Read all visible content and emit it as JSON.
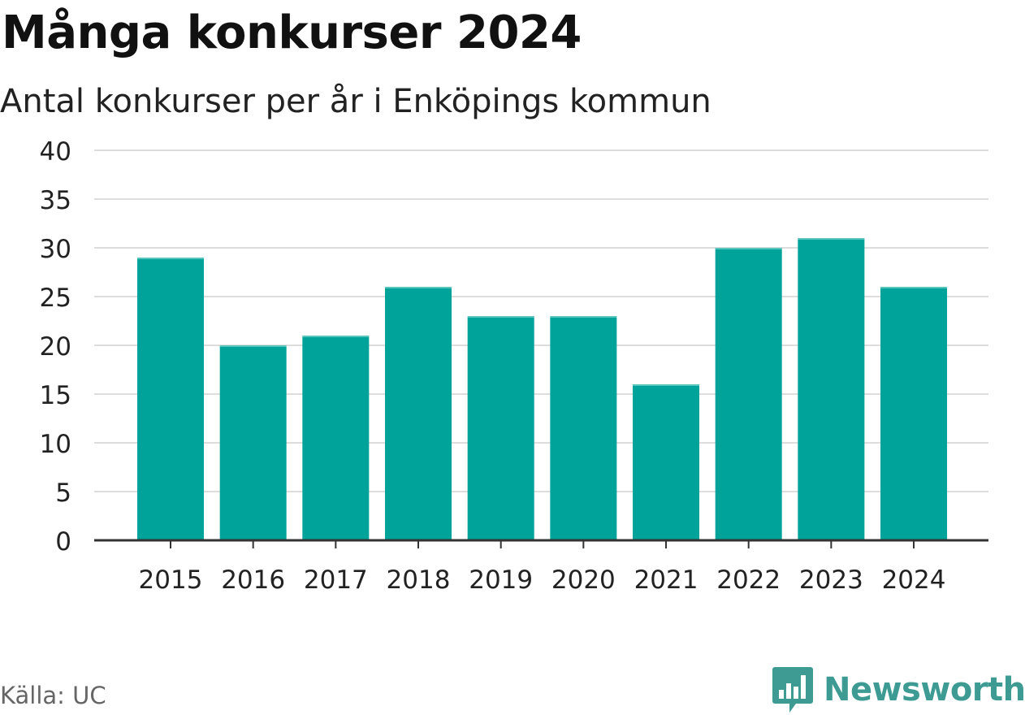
{
  "header": {
    "title": "Många konkurser 2024",
    "subtitle": "Antal konkurser per år i Enköpings kommun"
  },
  "footer": {
    "source": "Källa: UC",
    "brand": "Newsworthy",
    "brand_logo_icon": "bar-chart-speech-bubble-icon",
    "brand_color": "#3d9b94"
  },
  "colors": {
    "bar": "#00a39a",
    "grid": "#dddddd",
    "axis": "#333333",
    "text": "#222222"
  },
  "chart_data": {
    "type": "bar",
    "title": "Många konkurser 2024",
    "subtitle": "Antal konkurser per år i Enköpings kommun",
    "xlabel": "",
    "ylabel": "",
    "categories": [
      "2015",
      "2016",
      "2017",
      "2018",
      "2019",
      "2020",
      "2021",
      "2022",
      "2023",
      "2024"
    ],
    "values": [
      29,
      20,
      21,
      26,
      23,
      23,
      16,
      30,
      31,
      26
    ],
    "ylim": [
      0,
      40
    ],
    "yticks": [
      0,
      5,
      10,
      15,
      20,
      25,
      30,
      35,
      40
    ],
    "grid": true
  }
}
